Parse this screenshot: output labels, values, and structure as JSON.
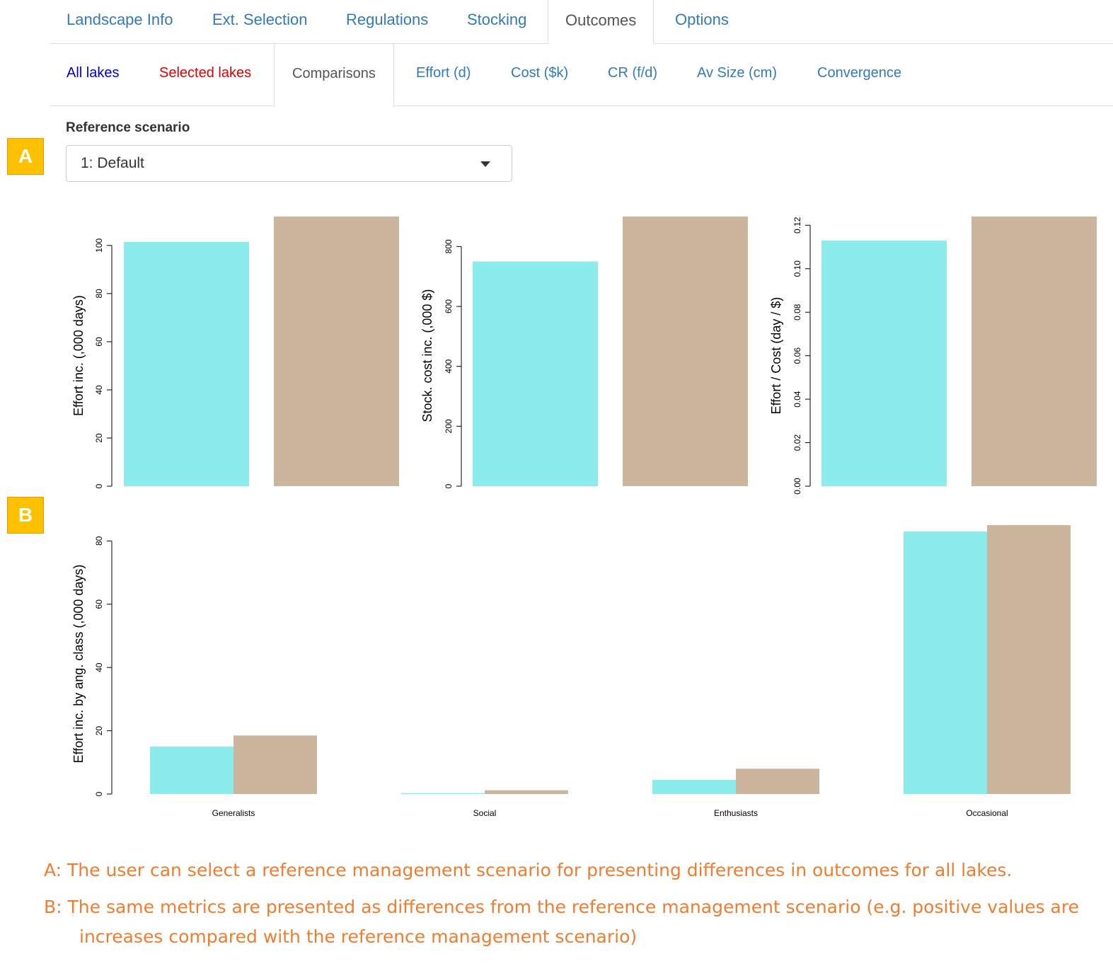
{
  "main_tabs": [
    "Landscape Info",
    "Ext. Selection",
    "Regulations",
    "Stocking",
    "Outcomes",
    "Options"
  ],
  "sub_tabs": [
    "All lakes",
    "Selected lakes",
    "Comparisons",
    "Effort (d)",
    "Cost ($k)",
    "CR (f/d)",
    "Av Size (cm)",
    "Convergence"
  ],
  "colors": {
    "tab_link": "#337ab7",
    "all_lakes": "#0000cc",
    "selected_lakes": "#dd0000",
    "series_1": "#8ceceb",
    "series_2": "#cbb59c",
    "note": "#ed7d31",
    "badge": "#ffc000"
  },
  "reference": {
    "label": "Reference scenario",
    "selected": "1: Default"
  },
  "badges": {
    "a": "A",
    "b": "B"
  },
  "chart_data": [
    {
      "type": "bar",
      "ylabel": "Effort inc. (,000 days)",
      "yticks": [
        "0",
        "20",
        "40",
        "60",
        "80",
        "100"
      ],
      "ylim": [
        0,
        112
      ],
      "series": [
        {
          "values": [
            101.5
          ]
        },
        {
          "values": [
            112
          ]
        }
      ]
    },
    {
      "type": "bar",
      "ylabel": "Stock. cost inc. (,000 $)",
      "yticks": [
        "0",
        "200",
        "400",
        "600",
        "800"
      ],
      "ylim": [
        0,
        900
      ],
      "series": [
        {
          "values": [
            750
          ]
        },
        {
          "values": [
            900
          ]
        }
      ]
    },
    {
      "type": "bar",
      "ylabel": "Effort / Cost (day / $)",
      "yticks": [
        "0.00",
        "0.02",
        "0.04",
        "0.06",
        "0.08",
        "0.10",
        "0.12"
      ],
      "ylim": [
        0,
        0.124
      ],
      "series": [
        {
          "values": [
            0.113
          ]
        },
        {
          "values": [
            0.124
          ]
        }
      ]
    },
    {
      "type": "bar",
      "ylabel": "Effort inc. by ang. class (,000 days)",
      "yticks": [
        "0",
        "20",
        "40",
        "60",
        "80"
      ],
      "ylim": [
        0,
        85
      ],
      "categories": [
        "Generalists",
        "Social",
        "Enthusiasts",
        "Occasional"
      ],
      "series": [
        {
          "values": [
            15,
            0.3,
            4.5,
            83
          ]
        },
        {
          "values": [
            18.5,
            1.2,
            8,
            85
          ]
        }
      ]
    }
  ],
  "notes": {
    "a": "A: The user can select a reference management scenario for presenting differences in outcomes for all lakes.",
    "b1": "B: The same metrics are presented as differences from the reference management scenario (e.g. positive values are",
    "b2": "increases compared with the reference management scenario)"
  }
}
